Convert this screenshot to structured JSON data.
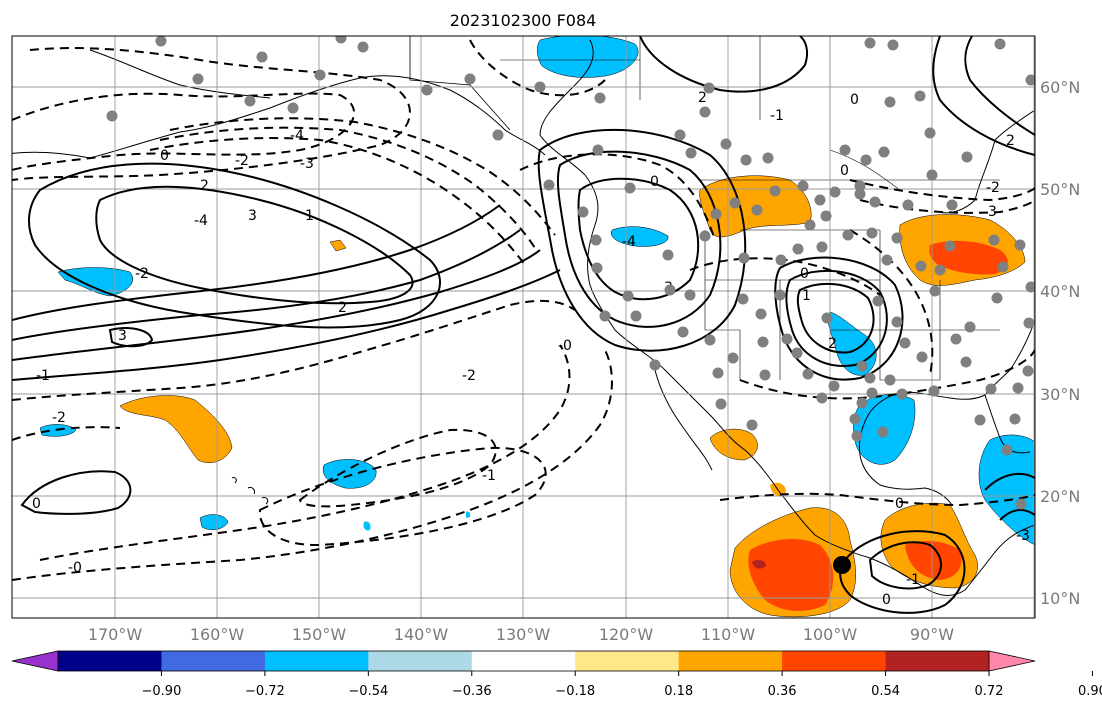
{
  "title": "2023102300 F084",
  "map": {
    "lat_labels": [
      "60°N",
      "50°N",
      "40°N",
      "30°N",
      "20°N",
      "10°N"
    ],
    "lon_labels": [
      "170°W",
      "160°W",
      "150°W",
      "140°W",
      "130°W",
      "120°W",
      "110°W",
      "100°W",
      "90°W"
    ],
    "contour_labels": [
      "-4",
      "-3",
      "-2",
      "2",
      "0",
      "1",
      "-4",
      "3",
      "2",
      "-2",
      "3",
      "-1",
      "-0",
      "-2",
      "0",
      "-1",
      "-0",
      "-2",
      "-0",
      "-4",
      "3",
      "0",
      "2",
      "-1",
      "0",
      "1",
      "0",
      "2",
      "-2",
      "0",
      "-1",
      "2",
      "0",
      "3",
      "-3"
    ],
    "colors": {
      "orange": "#ffa500",
      "red_orange": "#ff4500",
      "dark_red": "#b22222",
      "deep_sky_blue": "#00bfff",
      "station_marker": "#808080"
    }
  },
  "colorbar": {
    "tick_labels": [
      "−0.90",
      "−0.72",
      "−0.54",
      "−0.36",
      "−0.18",
      "0.18",
      "0.36",
      "0.54",
      "0.72",
      "0.90"
    ],
    "colors": [
      "#9932cc",
      "#00008b",
      "#4169e1",
      "#00bfff",
      "#add8e6",
      "#ffffff",
      "#ffe78a",
      "#ffa500",
      "#ff4500",
      "#b22222",
      "#ff88aa"
    ]
  }
}
